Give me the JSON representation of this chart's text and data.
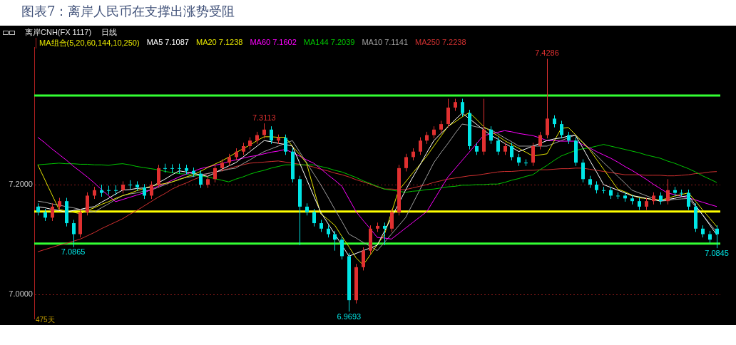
{
  "chart_data": {
    "type": "candlestick",
    "title": "图表7：离岸人民币在支撑出涨势受阻",
    "legend_title": "MA组合(5,20,60,144,10,250)",
    "grid": "y",
    "tick_labels": "y",
    "annotations": [
      "离岸CNH(FX 1117)",
      "日线",
      {
        "text": "7.4286",
        "y": 7.4286
      },
      {
        "text": "7.3113",
        "y": 7.3113
      },
      {
        "text": "7.0865",
        "y": 7.0865
      },
      {
        "text": "6.9693",
        "y": 6.9693
      },
      {
        "text": "7.0845",
        "y": 7.0845
      },
      "475天"
    ],
    "ylim": [
      6.956,
      7.45
    ],
    "yticks": [
      {
        "value": 7,
        "label": "7.0000"
      },
      {
        "value": 7.2,
        "label": "7.2000"
      }
    ],
    "categories": [
      null,
      null,
      null,
      null,
      null,
      null,
      null,
      null,
      null,
      null,
      null,
      null,
      null,
      null,
      null,
      null,
      null,
      null,
      null,
      null,
      null,
      null,
      null,
      null,
      null,
      null,
      null,
      null,
      null,
      null,
      null,
      null,
      null,
      null,
      null,
      null,
      null,
      null,
      null,
      null,
      null,
      null,
      null,
      null,
      null,
      null,
      null,
      null,
      null,
      null,
      null,
      null,
      null,
      null,
      null,
      null,
      null,
      null,
      null,
      null,
      null,
      null,
      null,
      null,
      null,
      null,
      null,
      null,
      null,
      null,
      null,
      null,
      null,
      null,
      null,
      null,
      null,
      null,
      null,
      null,
      null,
      null,
      null,
      null,
      null,
      null,
      null,
      null,
      null,
      null,
      null,
      null,
      null,
      null,
      null,
      null,
      null
    ],
    "ohlc": [
      [
        7.16,
        7.166,
        7.144,
        7.15
      ],
      [
        7.15,
        7.156,
        7.134,
        7.14
      ],
      [
        7.14,
        7.166,
        7.134,
        7.16
      ],
      [
        7.16,
        7.176,
        7.154,
        7.17
      ],
      [
        7.17,
        7.176,
        7.124,
        7.13
      ],
      [
        7.13,
        7.136,
        7.0865,
        7.11
      ],
      [
        7.11,
        7.156,
        7.104,
        7.15
      ],
      [
        7.15,
        7.186,
        7.144,
        7.18
      ],
      [
        7.18,
        7.196,
        7.174,
        7.19
      ],
      [
        7.19,
        7.2,
        7.178,
        7.185
      ],
      [
        7.19,
        7.198,
        7.182,
        7.19
      ],
      [
        7.19,
        7.199,
        7.181,
        7.19
      ],
      [
        7.19,
        7.206,
        7.184,
        7.2
      ],
      [
        7.2,
        7.208,
        7.192,
        7.2
      ],
      [
        7.2,
        7.206,
        7.189,
        7.195
      ],
      [
        7.195,
        7.201,
        7.174,
        7.18
      ],
      [
        7.18,
        7.206,
        7.174,
        7.2
      ],
      [
        7.2,
        7.236,
        7.194,
        7.23
      ],
      [
        7.23,
        7.238,
        7.222,
        7.23
      ],
      [
        7.23,
        7.237,
        7.221,
        7.23
      ],
      [
        7.23,
        7.238,
        7.22,
        7.23
      ],
      [
        7.23,
        7.236,
        7.219,
        7.225
      ],
      [
        7.225,
        7.231,
        7.214,
        7.22
      ],
      [
        7.22,
        7.226,
        7.194,
        7.2
      ],
      [
        7.2,
        7.216,
        7.194,
        7.21
      ],
      [
        7.21,
        7.236,
        7.204,
        7.23
      ],
      [
        7.23,
        7.246,
        7.224,
        7.24
      ],
      [
        7.24,
        7.256,
        7.234,
        7.25
      ],
      [
        7.25,
        7.266,
        7.244,
        7.26
      ],
      [
        7.26,
        7.276,
        7.254,
        7.27
      ],
      [
        7.27,
        7.286,
        7.264,
        7.28
      ],
      [
        7.28,
        7.296,
        7.274,
        7.29
      ],
      [
        7.29,
        7.3113,
        7.284,
        7.3
      ],
      [
        7.3,
        7.306,
        7.274,
        7.28
      ],
      [
        7.28,
        7.291,
        7.274,
        7.285
      ],
      [
        7.285,
        7.291,
        7.254,
        7.26
      ],
      [
        7.26,
        7.266,
        7.204,
        7.21
      ],
      [
        7.21,
        7.216,
        7.09,
        7.16
      ],
      [
        7.16,
        7.166,
        7.144,
        7.15
      ],
      [
        7.15,
        7.156,
        7.124,
        7.13
      ],
      [
        7.13,
        7.136,
        7.114,
        7.12
      ],
      [
        7.12,
        7.126,
        7.104,
        7.11
      ],
      [
        7.11,
        7.116,
        7.08,
        7.1
      ],
      [
        7.1,
        7.106,
        7.064,
        7.07
      ],
      [
        7.07,
        7.076,
        6.9693,
        6.99
      ],
      [
        6.99,
        7.056,
        6.984,
        7.05
      ],
      [
        7.05,
        7.086,
        7.044,
        7.08
      ],
      [
        7.08,
        7.126,
        7.074,
        7.12
      ],
      [
        7.12,
        7.131,
        7.114,
        7.125
      ],
      [
        7.125,
        7.131,
        7.09,
        7.12
      ],
      [
        7.12,
        7.156,
        7.114,
        7.15
      ],
      [
        7.15,
        7.236,
        7.144,
        7.23
      ],
      [
        7.23,
        7.256,
        7.224,
        7.25
      ],
      [
        7.25,
        7.266,
        7.244,
        7.26
      ],
      [
        7.26,
        7.286,
        7.254,
        7.28
      ],
      [
        7.28,
        7.296,
        7.274,
        7.29
      ],
      [
        7.29,
        7.306,
        7.284,
        7.3
      ],
      [
        7.3,
        7.316,
        7.294,
        7.31
      ],
      [
        7.31,
        7.356,
        7.304,
        7.34
      ],
      [
        7.34,
        7.356,
        7.334,
        7.35
      ],
      [
        7.35,
        7.356,
        7.324,
        7.33
      ],
      [
        7.33,
        7.336,
        7.264,
        7.27
      ],
      [
        7.27,
        7.276,
        7.254,
        7.26
      ],
      [
        7.26,
        7.356,
        7.254,
        7.3
      ],
      [
        7.3,
        7.306,
        7.274,
        7.28
      ],
      [
        7.28,
        7.286,
        7.254,
        7.26
      ],
      [
        7.26,
        7.276,
        7.254,
        7.27
      ],
      [
        7.27,
        7.276,
        7.244,
        7.25
      ],
      [
        7.25,
        7.256,
        7.234,
        7.24
      ],
      [
        7.24,
        7.246,
        7.234,
        7.24
      ],
      [
        7.24,
        7.276,
        7.234,
        7.27
      ],
      [
        7.27,
        7.296,
        7.264,
        7.29
      ],
      [
        7.29,
        7.4286,
        7.284,
        7.32
      ],
      [
        7.32,
        7.326,
        7.304,
        7.31
      ],
      [
        7.31,
        7.316,
        7.284,
        7.29
      ],
      [
        7.29,
        7.296,
        7.274,
        7.28
      ],
      [
        7.28,
        7.286,
        7.234,
        7.24
      ],
      [
        7.24,
        7.246,
        7.204,
        7.21
      ],
      [
        7.21,
        7.216,
        7.194,
        7.2
      ],
      [
        7.2,
        7.206,
        7.184,
        7.19
      ],
      [
        7.19,
        7.196,
        7.184,
        7.19
      ],
      [
        7.19,
        7.196,
        7.174,
        7.18
      ],
      [
        7.18,
        7.186,
        7.174,
        7.18
      ],
      [
        7.18,
        7.186,
        7.169,
        7.175
      ],
      [
        7.175,
        7.181,
        7.164,
        7.17
      ],
      [
        7.17,
        7.176,
        7.154,
        7.16
      ],
      [
        7.16,
        7.176,
        7.154,
        7.17
      ],
      [
        7.17,
        7.186,
        7.164,
        7.18
      ],
      [
        7.18,
        7.186,
        7.164,
        7.17
      ],
      [
        7.17,
        7.21,
        7.164,
        7.19
      ],
      [
        7.19,
        7.196,
        7.179,
        7.185
      ],
      [
        7.185,
        7.191,
        7.179,
        7.185
      ],
      [
        7.185,
        7.191,
        7.154,
        7.16
      ],
      [
        7.16,
        7.166,
        7.114,
        7.12
      ],
      [
        7.12,
        7.126,
        7.104,
        7.11
      ],
      [
        7.11,
        7.116,
        7.094,
        7.1
      ],
      [
        7.12,
        7.126,
        7.0845,
        7.11
      ]
    ],
    "colors": [
      "#00e5e5",
      "#00e5e5",
      "#e03030",
      "#e03030",
      "#00e5e5",
      "#00e5e5",
      "#e03030",
      "#e03030",
      "#e03030",
      "#00e5e5",
      "#00e5e5",
      "#00e5e5",
      "#e03030",
      "#00e5e5",
      "#00e5e5",
      "#00e5e5",
      "#e03030",
      "#e03030",
      "#00e5e5",
      "#00e5e5",
      "#00e5e5",
      "#00e5e5",
      "#00e5e5",
      "#00e5e5",
      "#e03030",
      "#e03030",
      "#e03030",
      "#e03030",
      "#e03030",
      "#e03030",
      "#e03030",
      "#e03030",
      "#e03030",
      "#00e5e5",
      "#e03030",
      "#00e5e5",
      "#00e5e5",
      "#00e5e5",
      "#00e5e5",
      "#00e5e5",
      "#00e5e5",
      "#00e5e5",
      "#00e5e5",
      "#00e5e5",
      "#00e5e5",
      "#e03030",
      "#e03030",
      "#e03030",
      "#e03030",
      "#00e5e5",
      "#e03030",
      "#e03030",
      "#e03030",
      "#e03030",
      "#e03030",
      "#e03030",
      "#e03030",
      "#e03030",
      "#e03030",
      "#e03030",
      "#00e5e5",
      "#00e5e5",
      "#00e5e5",
      "#e03030",
      "#00e5e5",
      "#00e5e5",
      "#e03030",
      "#00e5e5",
      "#00e5e5",
      "#00e5e5",
      "#e03030",
      "#e03030",
      "#e03030",
      "#00e5e5",
      "#00e5e5",
      "#00e5e5",
      "#00e5e5",
      "#00e5e5",
      "#00e5e5",
      "#00e5e5",
      "#00e5e5",
      "#00e5e5",
      "#00e5e5",
      "#00e5e5",
      "#00e5e5",
      "#00e5e5",
      "#e03030",
      "#e03030",
      "#00e5e5",
      "#e03030",
      "#00e5e5",
      "#00e5e5",
      "#00e5e5",
      "#00e5e5",
      "#00e5e5",
      "#00e5e5",
      "#00e5e5"
    ],
    "series": [
      {
        "name": "MA5 7.1087",
        "type": "line",
        "color": "#ffffff",
        "values": [
          7.16,
          7.158,
          7.155,
          7.153,
          7.15,
          7.153,
          7.155,
          7.158,
          7.16,
          7.168,
          7.175,
          7.183,
          7.19,
          7.191,
          7.193,
          7.194,
          7.195,
          7.203,
          7.21,
          7.218,
          7.225,
          7.223,
          7.22,
          7.218,
          7.215,
          7.221,
          7.228,
          7.234,
          7.24,
          7.25,
          7.26,
          7.27,
          7.28,
          7.278,
          7.275,
          7.273,
          7.27,
          7.24,
          7.21,
          7.18,
          7.15,
          7.13,
          7.11,
          7.09,
          7.07,
          7.075,
          7.08,
          7.085,
          7.09,
          7.115,
          7.14,
          7.165,
          7.19,
          7.213,
          7.235,
          7.258,
          7.28,
          7.293,
          7.305,
          7.318,
          7.33,
          7.32,
          7.31,
          7.3,
          7.29,
          7.283,
          7.275,
          7.268,
          7.26,
          7.265,
          7.27,
          7.275,
          7.28,
          7.283,
          7.285,
          7.288,
          7.29,
          7.268,
          7.245,
          7.223,
          7.2,
          7.195,
          7.19,
          7.185,
          7.18,
          7.178,
          7.175,
          7.173,
          7.17,
          7.173,
          7.175,
          7.178,
          7.18,
          7.162,
          7.145,
          7.127,
          7.1087
        ]
      },
      {
        "name": "MA20 7.1238",
        "type": "line",
        "color": "#e6e600",
        "values": [
          7.236,
          7.209,
          7.182,
          7.155,
          7.152,
          7.15,
          7.147,
          7.153,
          7.158,
          7.164,
          7.169,
          7.175,
          7.18,
          7.184,
          7.189,
          7.193,
          7.197,
          7.2,
          7.202,
          7.205,
          7.209,
          7.214,
          7.218,
          7.224,
          7.231,
          7.237,
          7.243,
          7.25,
          7.258,
          7.265,
          7.272,
          7.28,
          7.287,
          7.287,
          7.286,
          7.286,
          7.27,
          7.255,
          7.239,
          7.193,
          7.147,
          7.137,
          7.126,
          7.106,
          7.087,
          7.067,
          7.054,
          7.072,
          7.091,
          7.109,
          7.149,
          7.189,
          7.205,
          7.221,
          7.236,
          7.252,
          7.27,
          7.288,
          7.306,
          7.314,
          7.323,
          7.331,
          7.319,
          7.306,
          7.297,
          7.289,
          7.28,
          7.273,
          7.266,
          7.259,
          7.252,
          7.254,
          7.256,
          7.279,
          7.302,
          7.304,
          7.291,
          7.277,
          7.264,
          7.246,
          7.228,
          7.21,
          7.192,
          7.187,
          7.181,
          7.176,
          7.175,
          7.173,
          7.172,
          7.175,
          7.179,
          7.182,
          7.185,
          7.17,
          7.154,
          7.139,
          7.1238
        ]
      },
      {
        "name": "MA60 7.1602",
        "type": "line",
        "color": "#ff00ff",
        "values": [
          7.286,
          7.276,
          7.265,
          7.255,
          7.245,
          7.234,
          7.224,
          7.214,
          7.203,
          7.191,
          7.18,
          7.169,
          7.173,
          7.177,
          7.181,
          7.185,
          7.191,
          7.197,
          7.202,
          7.208,
          7.214,
          7.219,
          7.224,
          7.229,
          7.232,
          7.235,
          7.238,
          7.242,
          7.245,
          7.248,
          7.251,
          7.253,
          7.256,
          7.259,
          7.261,
          7.264,
          7.258,
          7.252,
          7.245,
          7.239,
          7.229,
          7.218,
          7.208,
          7.197,
          7.174,
          7.151,
          7.135,
          7.12,
          7.104,
          7.103,
          7.101,
          7.111,
          7.121,
          7.131,
          7.141,
          7.151,
          7.172,
          7.193,
          7.214,
          7.229,
          7.244,
          7.259,
          7.274,
          7.289,
          7.292,
          7.295,
          7.298,
          7.296,
          7.293,
          7.291,
          7.289,
          7.285,
          7.28,
          7.28,
          7.279,
          7.279,
          7.279,
          7.273,
          7.267,
          7.26,
          7.254,
          7.248,
          7.241,
          7.233,
          7.226,
          7.218,
          7.21,
          7.201,
          7.193,
          7.185,
          7.182,
          7.179,
          7.176,
          7.172,
          7.168,
          7.164,
          7.1602
        ]
      },
      {
        "name": "MA144 7.2039",
        "type": "line",
        "color": "#00c800",
        "values": [
          7.236,
          7.237,
          7.238,
          7.239,
          7.238,
          7.238,
          7.237,
          7.237,
          7.236,
          7.236,
          7.235,
          7.237,
          7.238,
          7.236,
          7.233,
          7.231,
          7.229,
          7.227,
          7.224,
          7.222,
          7.22,
          7.219,
          7.217,
          7.216,
          7.214,
          7.211,
          7.208,
          7.205,
          7.21,
          7.214,
          7.219,
          7.223,
          7.226,
          7.23,
          7.233,
          7.236,
          7.236,
          7.236,
          7.236,
          7.236,
          7.233,
          7.23,
          7.226,
          7.223,
          7.218,
          7.213,
          7.207,
          7.202,
          7.197,
          7.192,
          7.19,
          7.188,
          7.186,
          7.188,
          7.189,
          7.191,
          7.192,
          7.194,
          7.196,
          7.197,
          7.199,
          7.199,
          7.2,
          7.2,
          7.201,
          7.201,
          7.204,
          7.208,
          7.211,
          7.215,
          7.218,
          7.227,
          7.235,
          7.244,
          7.252,
          7.257,
          7.262,
          7.265,
          7.267,
          7.27,
          7.273,
          7.27,
          7.267,
          7.264,
          7.261,
          7.258,
          7.254,
          7.251,
          7.248,
          7.243,
          7.239,
          7.234,
          7.229,
          7.223,
          7.216,
          7.21,
          7.2039
        ]
      },
      {
        "name": "MA10 7.1141",
        "type": "line",
        "color": "#a0a0a0",
        "values": [
          7.17,
          7.168,
          7.165,
          7.163,
          7.16,
          7.158,
          7.155,
          7.153,
          7.15,
          7.158,
          7.165,
          7.173,
          7.18,
          7.183,
          7.185,
          7.188,
          7.19,
          7.195,
          7.2,
          7.205,
          7.21,
          7.213,
          7.215,
          7.218,
          7.22,
          7.223,
          7.225,
          7.228,
          7.23,
          7.238,
          7.245,
          7.253,
          7.26,
          7.265,
          7.27,
          7.275,
          7.28,
          7.26,
          7.24,
          7.22,
          7.2,
          7.178,
          7.155,
          7.133,
          7.11,
          7.103,
          7.095,
          7.088,
          7.08,
          7.095,
          7.11,
          7.125,
          7.14,
          7.165,
          7.19,
          7.215,
          7.24,
          7.258,
          7.275,
          7.293,
          7.31,
          7.308,
          7.305,
          7.303,
          7.3,
          7.293,
          7.285,
          7.278,
          7.27,
          7.27,
          7.27,
          7.27,
          7.27,
          7.275,
          7.28,
          7.285,
          7.29,
          7.278,
          7.265,
          7.253,
          7.24,
          7.228,
          7.215,
          7.203,
          7.19,
          7.185,
          7.18,
          7.175,
          7.17,
          7.171,
          7.173,
          7.174,
          7.175,
          7.16,
          7.145,
          7.129,
          7.1141
        ]
      },
      {
        "name": "MA250 7.2238",
        "type": "line",
        "color": "#d03030",
        "values": [
          7.078,
          7.082,
          7.086,
          7.09,
          7.093,
          7.097,
          7.101,
          7.107,
          7.113,
          7.12,
          7.126,
          7.132,
          7.138,
          7.146,
          7.153,
          7.161,
          7.169,
          7.177,
          7.184,
          7.192,
          7.198,
          7.203,
          7.209,
          7.214,
          7.22,
          7.223,
          7.226,
          7.229,
          7.233,
          7.236,
          7.239,
          7.24,
          7.241,
          7.242,
          7.243,
          7.241,
          7.239,
          7.237,
          7.235,
          7.232,
          7.228,
          7.225,
          7.221,
          7.218,
          7.214,
          7.209,
          7.205,
          7.201,
          7.196,
          7.192,
          7.192,
          7.191,
          7.191,
          7.194,
          7.197,
          7.2,
          7.204,
          7.207,
          7.21,
          7.212,
          7.214,
          7.216,
          7.217,
          7.219,
          7.221,
          7.223,
          7.224,
          7.224,
          7.225,
          7.226,
          7.226,
          7.227,
          7.227,
          7.228,
          7.229,
          7.229,
          7.23,
          7.23,
          7.228,
          7.226,
          7.224,
          7.222,
          7.22,
          7.218,
          7.218,
          7.218,
          7.217,
          7.217,
          7.217,
          7.216,
          7.216,
          7.217,
          7.218,
          7.22,
          7.221,
          7.223,
          7.2238
        ]
      }
    ],
    "ref_lines": [
      {
        "axis": "y",
        "value": 7.362,
        "color": "#33ff33"
      },
      {
        "axis": "y",
        "value": 7.151,
        "color": "#ffff00"
      },
      {
        "axis": "y",
        "value": 7.093,
        "color": "#33ff33"
      }
    ]
  }
}
